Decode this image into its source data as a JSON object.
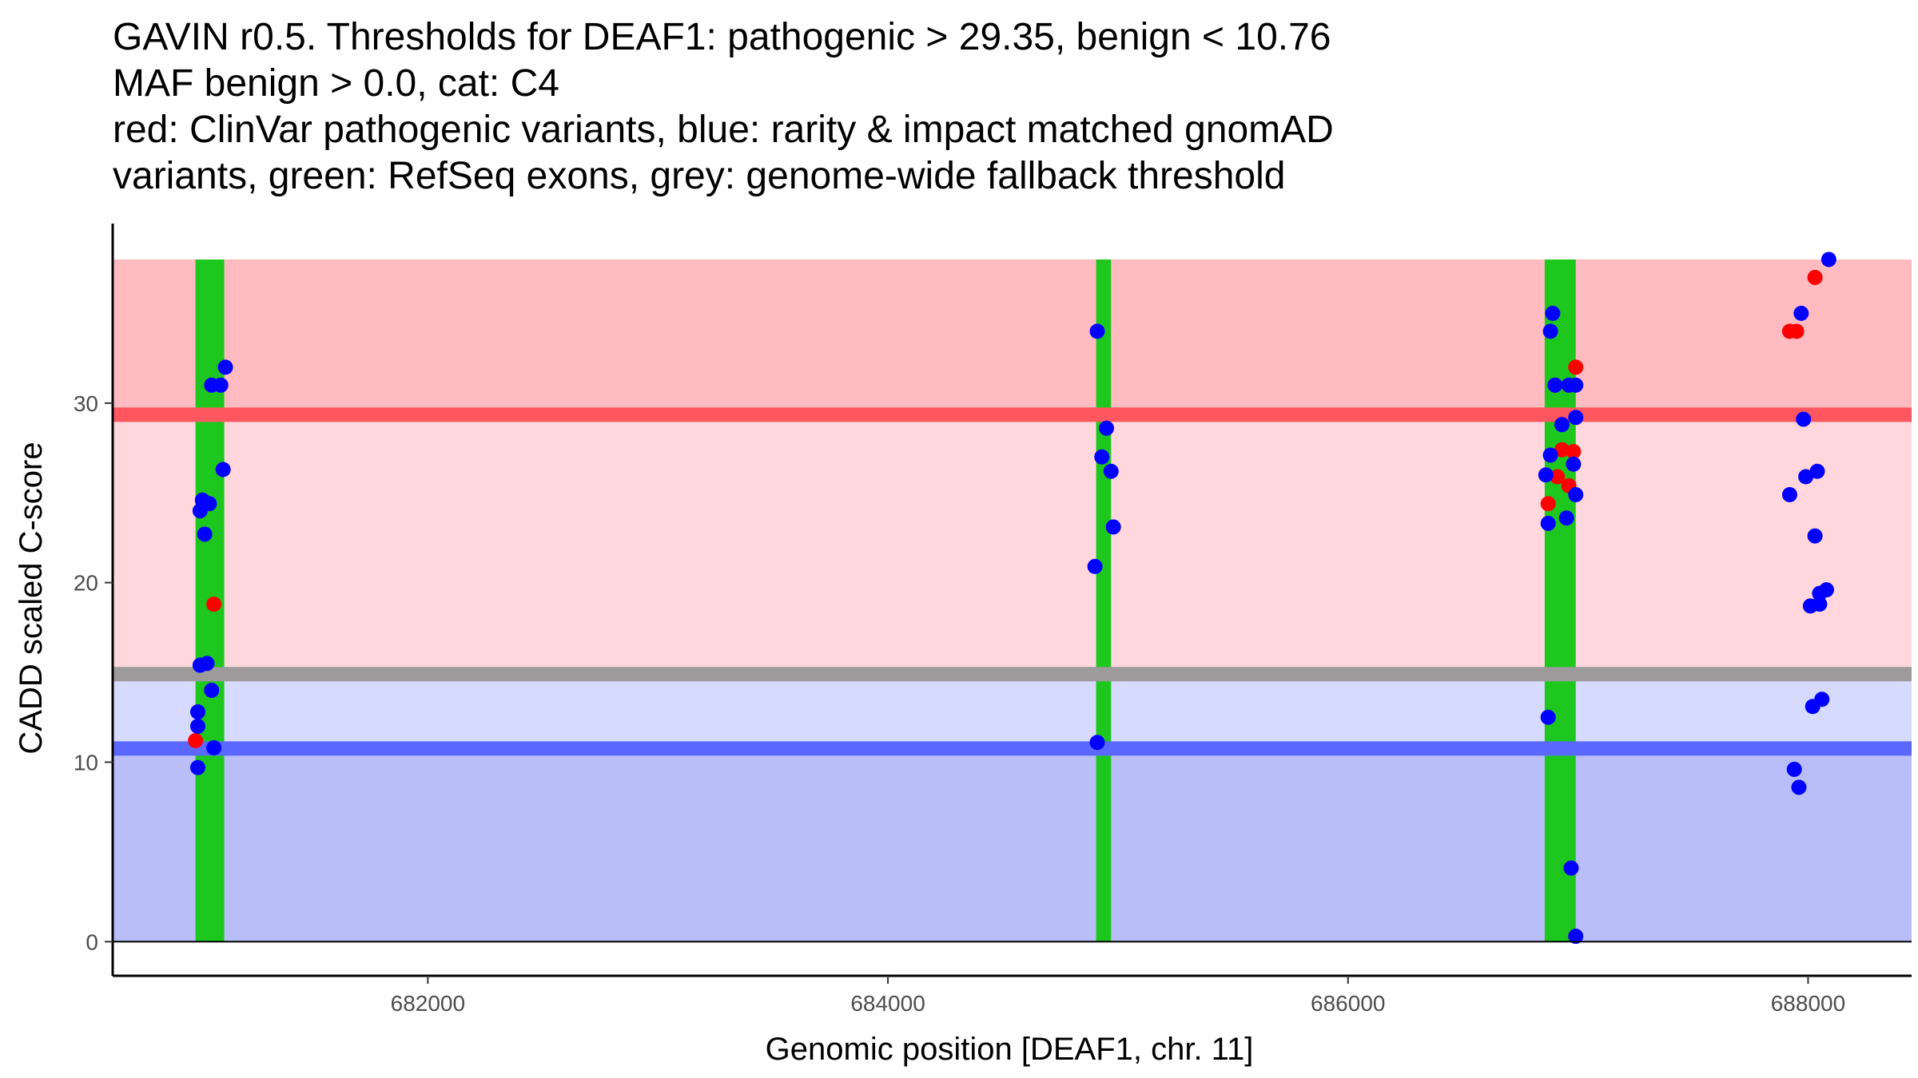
{
  "chart_data": {
    "type": "scatter",
    "title_lines": [
      "GAVIN r0.5. Thresholds for DEAF1: pathogenic > 29.35, benign < 10.76",
      "MAF benign > 0.0, cat: C4",
      "red: ClinVar pathogenic variants, blue: rarity & impact matched gnomAD",
      "variants, green: RefSeq exons, grey: genome-wide fallback threshold"
    ],
    "xlabel": "Genomic position [DEAF1, chr. 11]",
    "ylabel": "CADD scaled C-score",
    "xlim": [
      680630,
      688450
    ],
    "ylim": [
      -1.9,
      40.0
    ],
    "x_ticks": [
      682000,
      684000,
      686000,
      688000
    ],
    "x_tick_labels": [
      "682000",
      "684000",
      "686000",
      "688000"
    ],
    "y_ticks": [
      0,
      10,
      20,
      30
    ],
    "y_tick_labels": [
      "0",
      "10",
      "20",
      "30"
    ],
    "thresholds": {
      "pathogenic": 29.35,
      "benign": 10.76,
      "genome_wide_fallback": 14.9,
      "top": 38.0,
      "bottom": 0
    },
    "colors": {
      "pathogenic_band": "#ffbbc0",
      "mid_band": "#ffd7dc",
      "low_band": "#d7daff",
      "benign_band": "#b9bef9",
      "pathogenic_line": "#ff5660",
      "benign_line": "#5a68ff",
      "fallback_line": "#9c9a9a",
      "exon": "#1ec71e",
      "clinvar": "#ff0000",
      "gnomad": "#0000ff"
    },
    "exons": [
      {
        "start": 680990,
        "end": 681115
      },
      {
        "start": 684905,
        "end": 684970
      },
      {
        "start": 686855,
        "end": 686990
      }
    ],
    "series": [
      {
        "name": "ClinVar pathogenic variants",
        "color": "#ff0000",
        "points": [
          [
            680990,
            11.2
          ],
          [
            681070,
            18.8
          ],
          [
            686870,
            24.4
          ],
          [
            686900,
            31.0
          ],
          [
            686910,
            25.9
          ],
          [
            686930,
            27.4
          ],
          [
            686960,
            25.4
          ],
          [
            686980,
            27.3
          ],
          [
            686990,
            32.0
          ],
          [
            687920,
            34.0
          ],
          [
            687950,
            34.0
          ],
          [
            688030,
            37.0
          ]
        ]
      },
      {
        "name": "gnomAD matched variants",
        "color": "#0000ff",
        "points": [
          [
            681000,
            9.7
          ],
          [
            681000,
            12.0
          ],
          [
            681000,
            12.8
          ],
          [
            681010,
            15.4
          ],
          [
            681010,
            24.0
          ],
          [
            681020,
            24.6
          ],
          [
            681030,
            22.7
          ],
          [
            681040,
            15.5
          ],
          [
            681050,
            24.4
          ],
          [
            681060,
            31.0
          ],
          [
            681060,
            14.0
          ],
          [
            681070,
            10.8
          ],
          [
            681100,
            31.0
          ],
          [
            681110,
            26.3
          ],
          [
            681120,
            32.0
          ],
          [
            684900,
            20.9
          ],
          [
            684910,
            11.1
          ],
          [
            684910,
            34.0
          ],
          [
            684930,
            27.0
          ],
          [
            684950,
            28.6
          ],
          [
            684970,
            26.2
          ],
          [
            684980,
            23.1
          ],
          [
            686860,
            26.0
          ],
          [
            686870,
            12.5
          ],
          [
            686870,
            23.3
          ],
          [
            686880,
            27.1
          ],
          [
            686880,
            34.0
          ],
          [
            686890,
            35.0
          ],
          [
            686900,
            31.0
          ],
          [
            686930,
            28.8
          ],
          [
            686950,
            23.6
          ],
          [
            686960,
            31.0
          ],
          [
            686970,
            4.1
          ],
          [
            686980,
            26.6
          ],
          [
            686990,
            24.9
          ],
          [
            686990,
            29.2
          ],
          [
            686990,
            31.0
          ],
          [
            686990,
            0.3
          ],
          [
            687920,
            24.9
          ],
          [
            687940,
            9.6
          ],
          [
            687960,
            8.6
          ],
          [
            687970,
            35.0
          ],
          [
            687980,
            29.1
          ],
          [
            687990,
            25.9
          ],
          [
            688010,
            18.7
          ],
          [
            688020,
            13.1
          ],
          [
            688030,
            22.6
          ],
          [
            688040,
            26.2
          ],
          [
            688050,
            18.8
          ],
          [
            688050,
            19.4
          ],
          [
            688060,
            13.5
          ],
          [
            688080,
            19.6
          ],
          [
            688090,
            38.0
          ]
        ]
      }
    ]
  }
}
